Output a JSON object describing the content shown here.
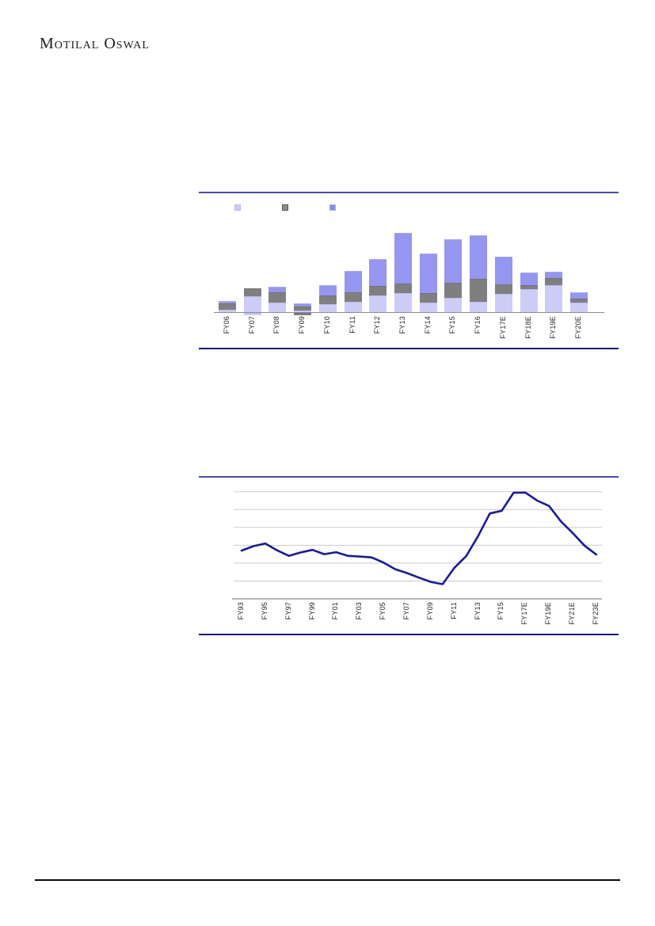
{
  "brand": {
    "name": "Motilal Oswal"
  },
  "legend": {
    "swatches": [
      {
        "name": "series-light",
        "color": "#ccccf7",
        "border": "#bcbcf0"
      },
      {
        "name": "series-gray",
        "color": "#8c8c8c",
        "border": "#5a5a5a"
      },
      {
        "name": "series-purple",
        "color": "#8a8af0",
        "border": "#adadf7"
      }
    ],
    "labels_visible": false
  },
  "chart_data": [
    {
      "type": "bar",
      "stacked": true,
      "title": "",
      "xlabel": "",
      "ylabel": "",
      "unit": "relative-units (no y-axis labels visible)",
      "ylim": [
        0,
        110
      ],
      "grid": false,
      "legend_position": "top-left",
      "categories": [
        "FY06",
        "FY07",
        "FY08",
        "FY09",
        "FY10",
        "FY11",
        "FY12",
        "FY13",
        "FY14",
        "FY15",
        "FY16",
        "FY17E",
        "FY18E",
        "FY19E",
        "FY20E"
      ],
      "series": [
        {
          "name": "light",
          "color": "#ccccf7",
          "border": "#bdbdf0",
          "values": [
            3,
            20,
            12,
            2,
            10,
            13,
            21,
            24,
            12,
            18,
            13,
            23,
            29,
            34,
            12
          ]
        },
        {
          "name": "gray",
          "color": "#7f7f7f",
          "border": "#737373",
          "values": [
            8,
            10,
            13,
            5,
            11,
            12,
            12,
            12,
            12,
            19,
            29,
            12,
            5,
            9,
            5
          ]
        },
        {
          "name": "purple",
          "color": "#9595f2",
          "border": "#aaaaf6",
          "values": [
            3,
            0,
            7,
            4,
            13,
            27,
            34,
            64,
            50,
            55,
            55,
            35,
            16,
            8,
            8
          ]
        }
      ],
      "below_axis": [
        {
          "category": "FY07",
          "series": "light",
          "value": -3
        },
        {
          "category": "FY09",
          "series": "gray",
          "value": -3
        }
      ]
    },
    {
      "type": "line",
      "title": "",
      "xlabel": "",
      "ylabel": "",
      "line_color": "#1a1a9c",
      "grid": true,
      "grid_step": 1,
      "ylim": [
        0,
        6.6
      ],
      "x": [
        "FY93",
        "FY94",
        "FY95",
        "FY96",
        "FY97",
        "FY98",
        "FY99",
        "FY00",
        "FY01",
        "FY02",
        "FY03",
        "FY04",
        "FY05",
        "FY06",
        "FY07",
        "FY08",
        "FY09",
        "FY10",
        "FY11",
        "FY12",
        "FY13",
        "FY14",
        "FY15",
        "FY16",
        "FY17E",
        "FY18E",
        "FY19E",
        "FY20E",
        "FY21E",
        "FY22E",
        "FY23E"
      ],
      "values": [
        2.7,
        2.95,
        3.1,
        2.72,
        2.41,
        2.6,
        2.74,
        2.5,
        2.61,
        2.41,
        2.37,
        2.32,
        2.03,
        1.66,
        1.44,
        1.19,
        0.95,
        0.82,
        1.74,
        2.4,
        3.51,
        4.78,
        4.93,
        5.94,
        5.95,
        5.5,
        5.2,
        4.34,
        3.69,
        2.98,
        2.48
      ],
      "tick_labels": [
        "FY93",
        "FY95",
        "FY97",
        "FY99",
        "FY01",
        "FY03",
        "FY05",
        "FY07",
        "FY09",
        "FY11",
        "FY13",
        "FY15",
        "FY17E",
        "FY19E",
        "FY21E",
        "FY23E"
      ]
    }
  ]
}
